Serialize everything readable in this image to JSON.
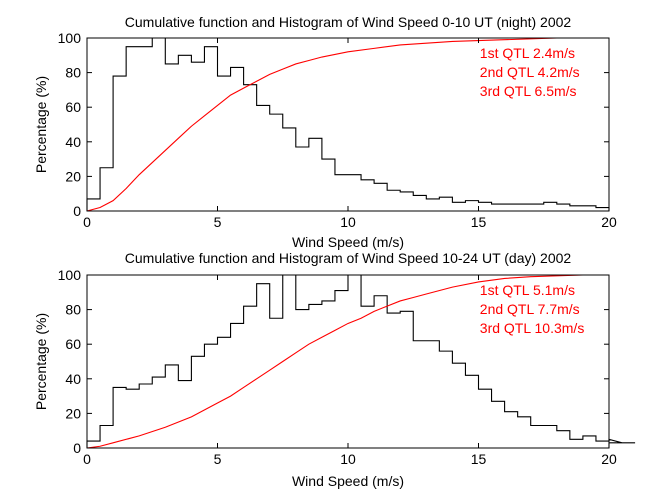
{
  "figure": {
    "background": "#ffffff",
    "axis_color": "#000000",
    "hist_color": "#000000",
    "cdf_color": "#ff0000",
    "annotation_color": "#ff0000"
  },
  "chart_data": [
    {
      "type": "line",
      "title": "Cumulative function and Histogram of Wind Speed 0-10 UT (night) 2002",
      "xlabel": "Wind Speed (m/s)",
      "ylabel": "Percentage (%)",
      "xlim": [
        0,
        20
      ],
      "ylim": [
        0,
        100
      ],
      "xticks": [
        0,
        5,
        10,
        15,
        20
      ],
      "yticks": [
        0,
        20,
        40,
        60,
        80,
        100
      ],
      "grid": false,
      "annotations": [
        "1st QTL 2.4m/s",
        "2nd QTL 4.2m/s",
        "3rd QTL 6.5m/s"
      ],
      "series": [
        {
          "kind": "histogram-stairs",
          "color": "#000000",
          "bin_width": 0.5,
          "values": [
            7,
            25,
            78,
            95,
            95,
            100,
            85,
            90,
            86,
            95,
            78,
            83,
            73,
            61,
            56,
            48,
            37,
            42,
            30,
            21,
            21,
            18,
            16,
            12,
            11,
            9,
            7,
            8,
            5,
            6,
            5,
            4,
            4,
            4,
            4,
            5,
            4,
            3,
            3,
            2,
            2
          ]
        },
        {
          "kind": "cdf",
          "color": "#ff0000",
          "x": [
            0,
            0.5,
            1,
            1.5,
            2,
            2.5,
            3,
            3.5,
            4,
            4.5,
            5,
            5.5,
            6,
            6.5,
            7,
            7.5,
            8,
            8.5,
            9,
            10,
            11,
            12,
            13,
            14,
            15,
            16,
            17,
            18,
            19,
            20
          ],
          "y": [
            0,
            2,
            6,
            13,
            21,
            28,
            35,
            42,
            49,
            55,
            61,
            67,
            71,
            75,
            79,
            82,
            85,
            87,
            89,
            92,
            94,
            96,
            97,
            98,
            98.5,
            99,
            99.5,
            100,
            100,
            100
          ]
        }
      ]
    },
    {
      "type": "line",
      "title": "Cumulative function and Histogram of Wind Speed 10-24 UT (day) 2002",
      "xlabel": "Wind Speed (m/s)",
      "ylabel": "Percentage (%)",
      "xlim": [
        0,
        20
      ],
      "ylim": [
        0,
        100
      ],
      "xticks": [
        0,
        5,
        10,
        15,
        20
      ],
      "yticks": [
        0,
        20,
        40,
        60,
        80,
        100
      ],
      "grid": false,
      "annotations": [
        "1st QTL 5.1m/s",
        "2nd QTL 7.7m/s",
        "3rd QTL 10.3m/s"
      ],
      "series": [
        {
          "kind": "histogram-stairs",
          "color": "#000000",
          "bin_width": 0.5,
          "values": [
            4,
            13,
            35,
            34,
            37,
            41,
            48,
            39,
            53,
            60,
            64,
            72,
            82,
            95,
            75,
            100,
            80,
            83,
            85,
            91,
            100,
            82,
            88,
            78,
            79,
            62,
            62,
            56,
            49,
            42,
            34,
            27,
            21,
            18,
            13,
            13,
            10,
            5,
            7,
            4,
            5,
            3,
            3
          ]
        },
        {
          "kind": "cdf",
          "color": "#ff0000",
          "x": [
            0,
            0.5,
            1,
            2,
            3,
            4,
            5,
            5.5,
            6,
            6.5,
            7,
            7.5,
            8,
            8.5,
            9,
            9.5,
            10,
            10.5,
            11,
            11.5,
            12,
            12.5,
            13,
            14,
            15,
            16,
            17,
            18,
            19,
            20
          ],
          "y": [
            0,
            1,
            3,
            7,
            12,
            18,
            26,
            30,
            35,
            40,
            45,
            50,
            55,
            60,
            64,
            68,
            72,
            75,
            79,
            82,
            85,
            87,
            89,
            93,
            96,
            98,
            99,
            99.5,
            100,
            100
          ]
        }
      ]
    }
  ]
}
